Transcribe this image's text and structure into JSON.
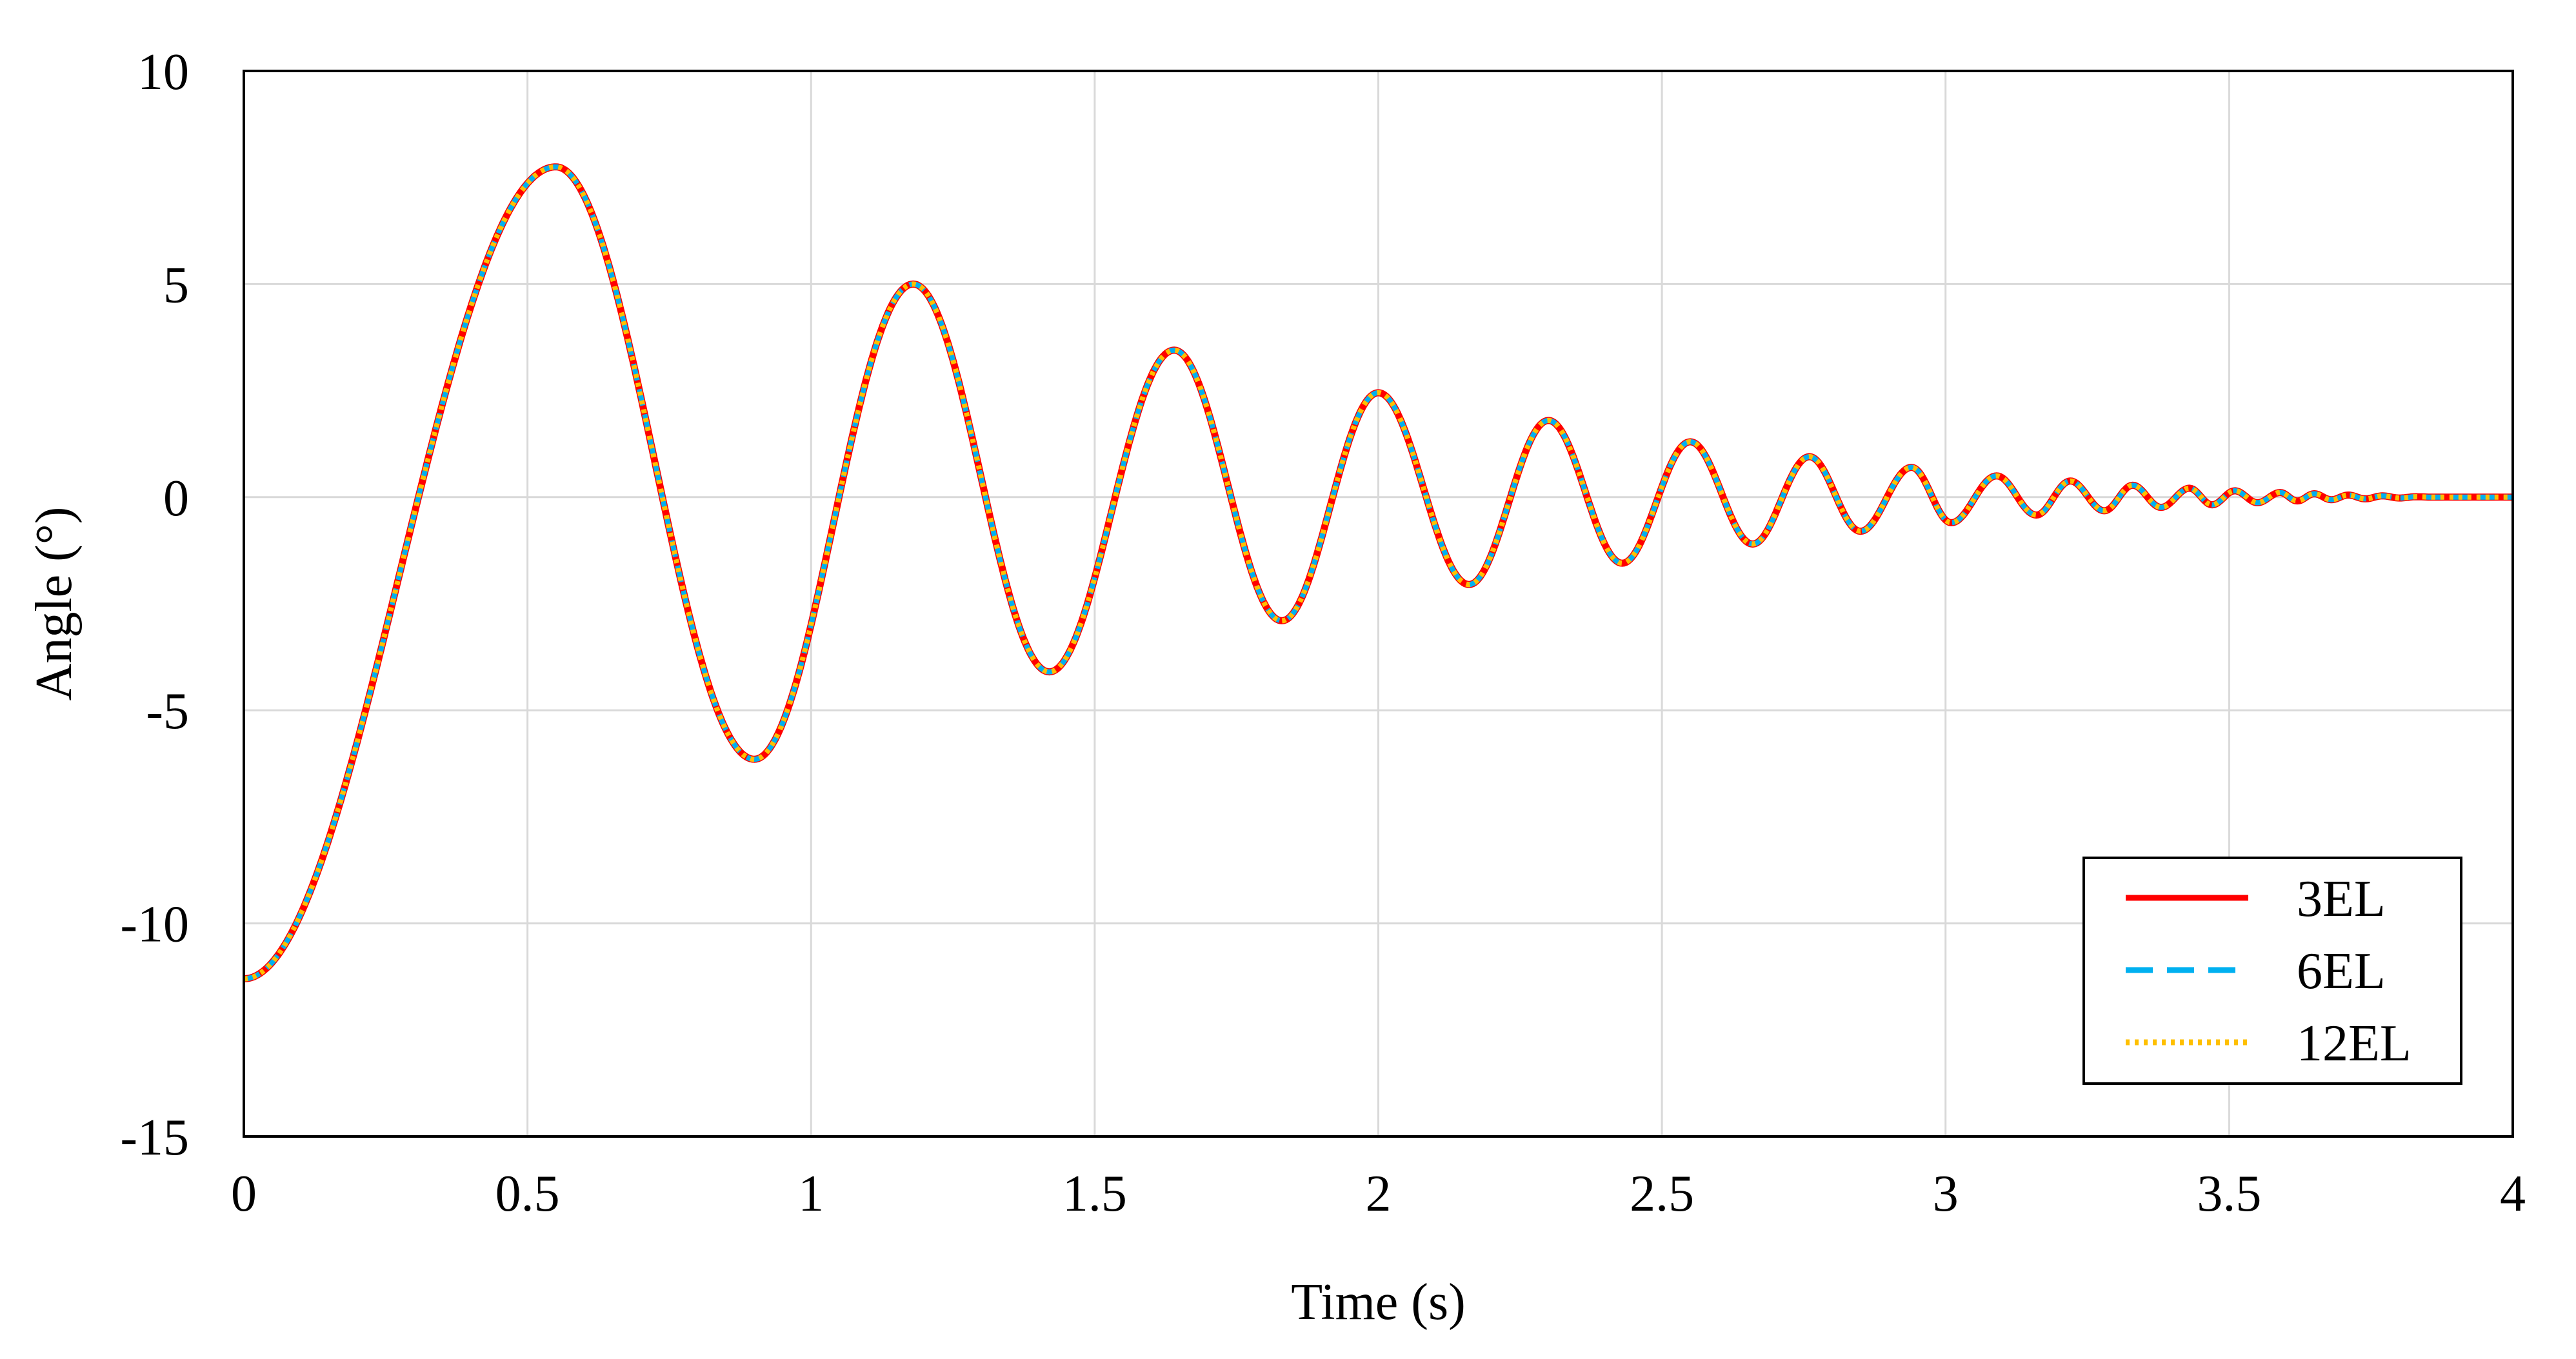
{
  "chart_data": {
    "type": "line",
    "title": "",
    "xlabel": "Time (s)",
    "ylabel": "Angle (°)",
    "xlim": [
      0,
      4
    ],
    "ylim": [
      -15,
      10
    ],
    "xticks": [
      {
        "v": 0,
        "label": "0"
      },
      {
        "v": 0.5,
        "label": "0.5"
      },
      {
        "v": 1,
        "label": "1"
      },
      {
        "v": 1.5,
        "label": "1.5"
      },
      {
        "v": 2,
        "label": "2"
      },
      {
        "v": 2.5,
        "label": "2.5"
      },
      {
        "v": 3,
        "label": "3"
      },
      {
        "v": 3.5,
        "label": "3.5"
      },
      {
        "v": 4,
        "label": "4"
      }
    ],
    "yticks": [
      {
        "v": 10,
        "label": "10"
      },
      {
        "v": 5,
        "label": "5"
      },
      {
        "v": 0,
        "label": "0"
      },
      {
        "v": -5,
        "label": "-5"
      },
      {
        "v": -10,
        "label": "-10"
      },
      {
        "v": -15,
        "label": "-15"
      }
    ],
    "grid": true,
    "legend_position": "bottom-right",
    "extrema": [
      {
        "x": 0,
        "y": -11.3
      },
      {
        "x": 0.55,
        "y": 7.75
      },
      {
        "x": 0.9,
        "y": -6.15
      },
      {
        "x": 1.18,
        "y": 5.0
      },
      {
        "x": 1.42,
        "y": -4.1
      },
      {
        "x": 1.64,
        "y": 3.45
      },
      {
        "x": 1.83,
        "y": -2.9
      },
      {
        "x": 2.0,
        "y": 2.45
      },
      {
        "x": 2.16,
        "y": -2.05
      },
      {
        "x": 2.3,
        "y": 1.8
      },
      {
        "x": 2.43,
        "y": -1.55
      },
      {
        "x": 2.55,
        "y": 1.3
      },
      {
        "x": 2.66,
        "y": -1.1
      },
      {
        "x": 2.76,
        "y": 0.95
      },
      {
        "x": 2.85,
        "y": -0.8
      },
      {
        "x": 2.94,
        "y": 0.7
      },
      {
        "x": 3.01,
        "y": -0.6
      },
      {
        "x": 3.09,
        "y": 0.5
      },
      {
        "x": 3.16,
        "y": -0.42
      },
      {
        "x": 3.22,
        "y": 0.38
      },
      {
        "x": 3.28,
        "y": -0.32
      },
      {
        "x": 3.33,
        "y": 0.28
      },
      {
        "x": 3.38,
        "y": -0.24
      },
      {
        "x": 3.43,
        "y": 0.21
      },
      {
        "x": 3.47,
        "y": -0.18
      },
      {
        "x": 3.51,
        "y": 0.15
      },
      {
        "x": 3.55,
        "y": -0.13
      },
      {
        "x": 3.59,
        "y": 0.11
      },
      {
        "x": 3.62,
        "y": -0.09
      },
      {
        "x": 3.65,
        "y": 0.08
      },
      {
        "x": 3.68,
        "y": -0.06
      },
      {
        "x": 3.71,
        "y": 0.05
      },
      {
        "x": 3.74,
        "y": -0.04
      },
      {
        "x": 3.77,
        "y": 0.03
      },
      {
        "x": 3.8,
        "y": -0.02
      },
      {
        "x": 3.83,
        "y": 0.01
      },
      {
        "x": 3.86,
        "y": 0.0
      },
      {
        "x": 4.0,
        "y": 0.0
      }
    ],
    "series": [
      {
        "name": "3EL",
        "color": "#ff0000",
        "dash": "solid"
      },
      {
        "name": "6EL",
        "color": "#00b0f0",
        "dash": "dashed"
      },
      {
        "name": "12EL",
        "color": "#ffc000",
        "dash": "dotted"
      }
    ]
  }
}
